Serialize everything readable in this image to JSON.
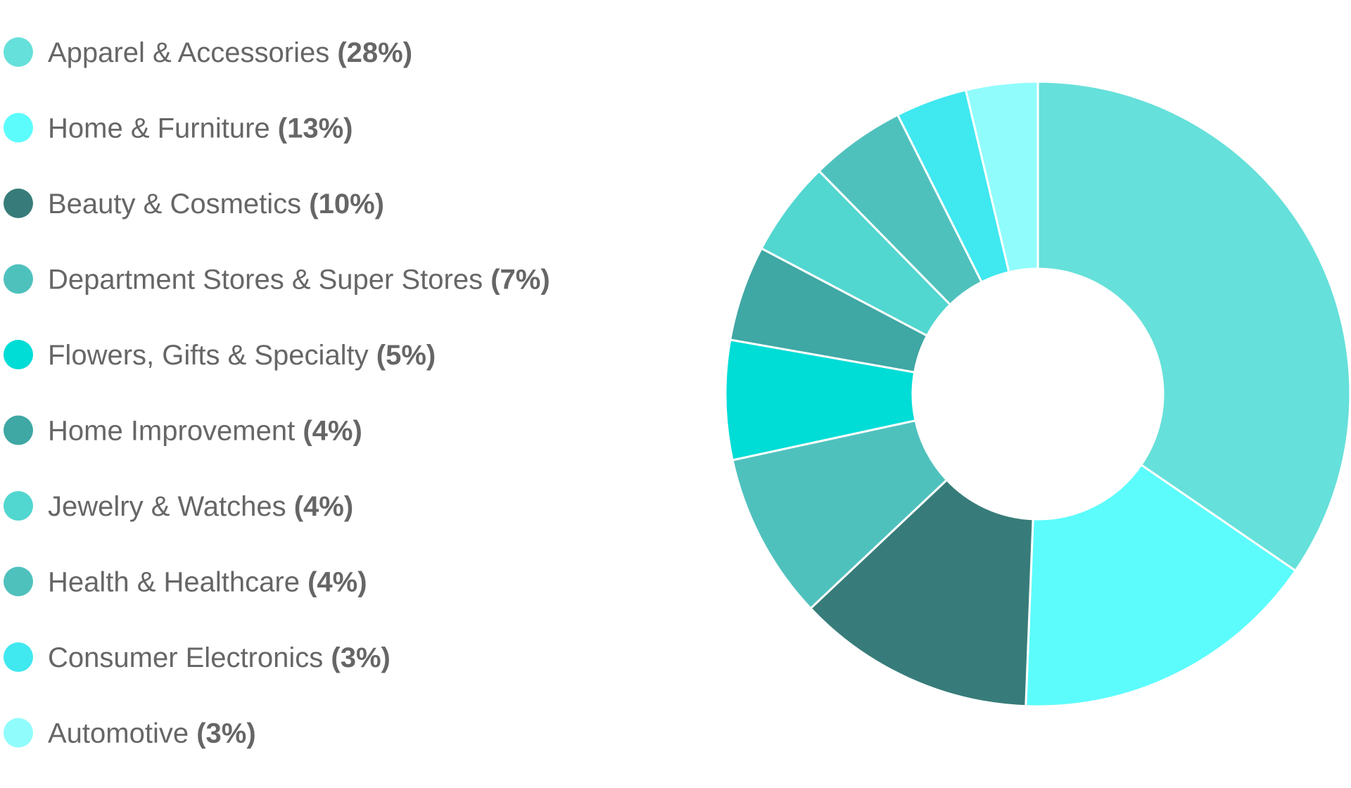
{
  "chart_data": {
    "type": "pie",
    "style": "donut",
    "title": "",
    "legend_position": "left",
    "categories": [
      "Apparel & Accessories",
      "Home & Furniture",
      "Beauty & Cosmetics",
      "Department Stores & Super Stores",
      "Flowers, Gifts & Specialty",
      "Home Improvement",
      "Jewelry & Watches",
      "Health & Healthcare",
      "Consumer Electronics",
      "Automotive"
    ],
    "values": [
      28,
      13,
      10,
      7,
      5,
      4,
      4,
      4,
      3,
      3
    ],
    "value_labels": [
      "(28%)",
      "(13%)",
      "(10%)",
      "(7%)",
      "(5%)",
      "(4%)",
      "(4%)",
      "(4%)",
      "(3%)",
      "(3%)"
    ],
    "colors": [
      "#66e0da",
      "#5cfcfc",
      "#377c7a",
      "#4fc1bd",
      "#00dcd6",
      "#3fa7a4",
      "#52d6d0",
      "#4fc1bd",
      "#40e8f0",
      "#90fcfc"
    ]
  }
}
